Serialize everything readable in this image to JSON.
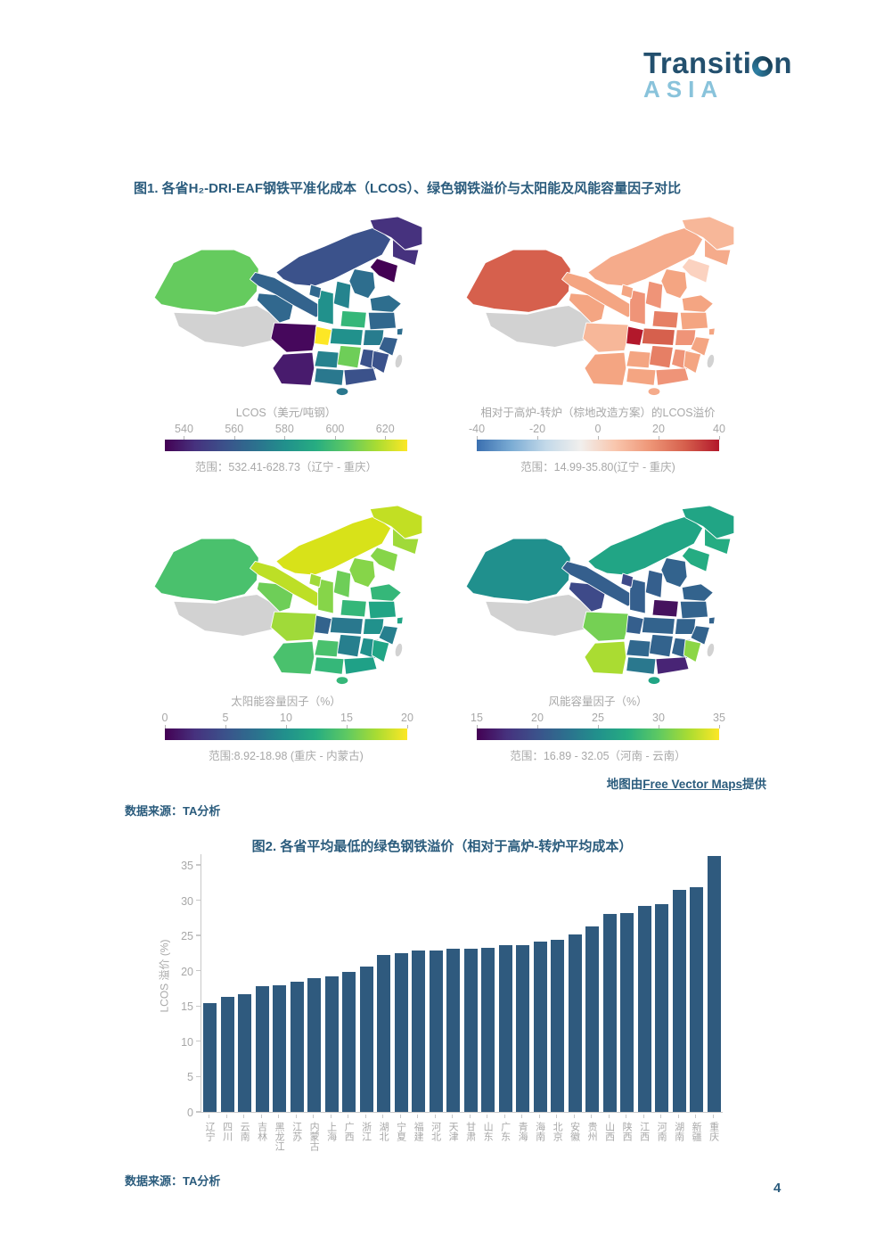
{
  "logo": {
    "name_part1": "Transiti",
    "name_part2": "n",
    "subtitle": "ASIA"
  },
  "figure1": {
    "title": "图1. 各省H₂-DRI-EAF钢铁平准化成本（LCOS）、绿色钢铁溢价与太阳能及风能容量因子对比",
    "maps": [
      {
        "legend_title": "LCOS（美元/吨钢）",
        "ticks": [
          "540",
          "560",
          "580",
          "600",
          "620"
        ],
        "tick_positions": [
          7.9,
          28.6,
          49.4,
          70.2,
          90.9
        ],
        "range_text": "范围：532.41-628.73（辽宁 - 重庆）",
        "colormap": "viridis",
        "regions": {
          "xinjiang": "#65cb5e",
          "tibet": "#d2d2d2",
          "qinghai": "#31688e",
          "gansu": "#33638d",
          "innermongolia": "#3b528b",
          "heilongjiang": "#46327e",
          "jilin": "#46327e",
          "liaoning": "#440154",
          "hebei": "#2e6e8e",
          "shanxi": "#25848e",
          "shaanxi": "#21918c",
          "ningxia": "#31688e",
          "shandong": "#2e6e8e",
          "henan": "#35b779",
          "jiangsu": "#31688e",
          "anhui": "#287c8e",
          "shanghai": "#2e6e8e",
          "hubei": "#21918c",
          "zhejiang": "#355f8d",
          "jiangxi": "#3b528b",
          "hunan": "#6ece58",
          "guizhou": "#26828e",
          "sichuan": "#46085c",
          "chongqing": "#fde725",
          "yunnan": "#481b6d",
          "guangxi": "#2a788e",
          "guangdong": "#3b528b",
          "fujian": "#3b528b",
          "hainan": "#2a788e",
          "taiwan": "#d2d2d2"
        }
      },
      {
        "legend_title": "相对于高炉-转炉（棕地改造方案）的LCOS溢价",
        "ticks": [
          "-40",
          "-20",
          "0",
          "20",
          "40"
        ],
        "tick_positions": [
          0,
          25,
          50,
          75,
          100
        ],
        "range_text": "范围：14.99-35.80(辽宁 - 重庆)",
        "colormap": "rdbu",
        "regions": {
          "xinjiang": "#d6604d",
          "tibet": "#d2d2d2",
          "qinghai": "#f4a582",
          "gansu": "#f4a582",
          "innermongolia": "#f5ab8b",
          "heilongjiang": "#f7b799",
          "jilin": "#f5ab8b",
          "liaoning": "#fbd2c0",
          "hebei": "#f4a582",
          "shanxi": "#ef9478",
          "shaanxi": "#ef9478",
          "ningxia": "#f4a582",
          "shandong": "#f4a582",
          "henan": "#e67f65",
          "jiangsu": "#f4a582",
          "anhui": "#ef9478",
          "shanghai": "#f4a582",
          "hubei": "#d6604d",
          "zhejiang": "#f4a582",
          "jiangxi": "#ef9478",
          "hunan": "#e67f65",
          "guizhou": "#f4a582",
          "sichuan": "#f7b799",
          "chongqing": "#b2182b",
          "yunnan": "#f4a582",
          "guangxi": "#f4a582",
          "guangdong": "#ef9478",
          "fujian": "#f4a582",
          "hainan": "#f5ab8b",
          "taiwan": "#d2d2d2"
        }
      },
      {
        "legend_title": "太阳能容量因子（%）",
        "ticks": [
          "0",
          "5",
          "10",
          "15",
          "20"
        ],
        "tick_positions": [
          0,
          25,
          50,
          75,
          100
        ],
        "range_text": "范围:8.92-18.98 (重庆 - 内蒙古)",
        "colormap": "viridis",
        "regions": {
          "xinjiang": "#4ac16d",
          "tibet": "#d2d2d2",
          "qinghai": "#6ece58",
          "gansu": "#bddf26",
          "innermongolia": "#d8e219",
          "heilongjiang": "#c2df23",
          "jilin": "#a0da39",
          "liaoning": "#86d549",
          "hebei": "#86d549",
          "shanxi": "#6ece58",
          "shaanxi": "#86d549",
          "ningxia": "#a0da39",
          "shandong": "#35b779",
          "henan": "#35b779",
          "jiangsu": "#21a585",
          "anhui": "#21918c",
          "shanghai": "#21a585",
          "hubei": "#2a788e",
          "zhejiang": "#277f8e",
          "jiangxi": "#21918c",
          "hunan": "#277f8e",
          "guizhou": "#4ac16d",
          "sichuan": "#a0da39",
          "chongqing": "#33638d",
          "yunnan": "#4ac16d",
          "guangxi": "#35b779",
          "guangdong": "#1fa187",
          "fujian": "#21a585",
          "hainan": "#35b779",
          "taiwan": "#d2d2d2"
        }
      },
      {
        "legend_title": "风能容量因子（%）",
        "ticks": [
          "15",
          "20",
          "25",
          "30",
          "35"
        ],
        "tick_positions": [
          0,
          25,
          50,
          75,
          100
        ],
        "range_text": "范围：16.89 - 32.05（河南 - 云南）",
        "colormap": "viridis",
        "regions": {
          "xinjiang": "#20908d",
          "tibet": "#d2d2d2",
          "qinghai": "#3e4a89",
          "gansu": "#355f8d",
          "innermongolia": "#21a585",
          "heilongjiang": "#21a585",
          "jilin": "#25ac82",
          "liaoning": "#25ac82",
          "hebei": "#33638d",
          "shanxi": "#355f8d",
          "shaanxi": "#355f8d",
          "ningxia": "#3e4a89",
          "shandong": "#33638d",
          "henan": "#46125e",
          "jiangsu": "#33638d",
          "anhui": "#33638d",
          "shanghai": "#33638d",
          "hubei": "#33638d",
          "zhejiang": "#33638d",
          "jiangxi": "#33638d",
          "hunan": "#33638d",
          "guizhou": "#31688e",
          "sichuan": "#75d054",
          "chongqing": "#355f8d",
          "yunnan": "#aadc32",
          "guangxi": "#2a788e",
          "guangdong": "#482475",
          "fujian": "#8bd646",
          "hainan": "#21a585",
          "taiwan": "#d2d2d2"
        }
      }
    ],
    "map_credit_prefix": "地图由",
    "map_credit_link": "Free Vector Maps",
    "map_credit_suffix": "提供",
    "source": "数据来源：TA分析"
  },
  "figure2": {
    "title": "图2. 各省平均最低的绿色钢铁溢价（相对于高炉-转炉平均成本）",
    "source": "数据来源：TA分析"
  },
  "chart_data": {
    "type": "bar",
    "title": "图2. 各省平均最低的绿色钢铁溢价（相对于高炉-转炉平均成本）",
    "xlabel": "",
    "ylabel": "LCOS 溢价 (%)",
    "ylim": [
      0,
      35
    ],
    "yticks": [
      0,
      5,
      10,
      15,
      20,
      25,
      30,
      35
    ],
    "grid": false,
    "legend": "none",
    "bar_color": "#2F5A7E",
    "categories": [
      "辽宁",
      "四川",
      "云南",
      "吉林",
      "黑龙江",
      "江苏",
      "内蒙古",
      "上海",
      "广西",
      "浙江",
      "湖北",
      "宁夏",
      "福建",
      "河北",
      "天津",
      "甘肃",
      "山东",
      "广东",
      "青海",
      "海南",
      "北京",
      "安徽",
      "贵州",
      "山西",
      "陕西",
      "江西",
      "河南",
      "湖南",
      "新疆",
      "重庆"
    ],
    "values": [
      15.4,
      16.3,
      16.7,
      17.8,
      17.9,
      18.4,
      19.0,
      19.2,
      19.9,
      20.6,
      22.3,
      22.5,
      22.9,
      22.9,
      23.1,
      23.1,
      23.2,
      23.6,
      23.6,
      24.1,
      24.4,
      25.2,
      26.3,
      28.1,
      28.2,
      29.2,
      29.5,
      31.5,
      31.9,
      36.3
    ]
  },
  "page_number": "4",
  "colors": {
    "accent_blue": "#2B5C7D",
    "logo_navy": "#23506E",
    "logo_light_blue": "#89C3DB",
    "bar_blue": "#2F5A7E",
    "legend_gray": "#A8A8A8",
    "nodata_gray": "#D2D2D2"
  }
}
